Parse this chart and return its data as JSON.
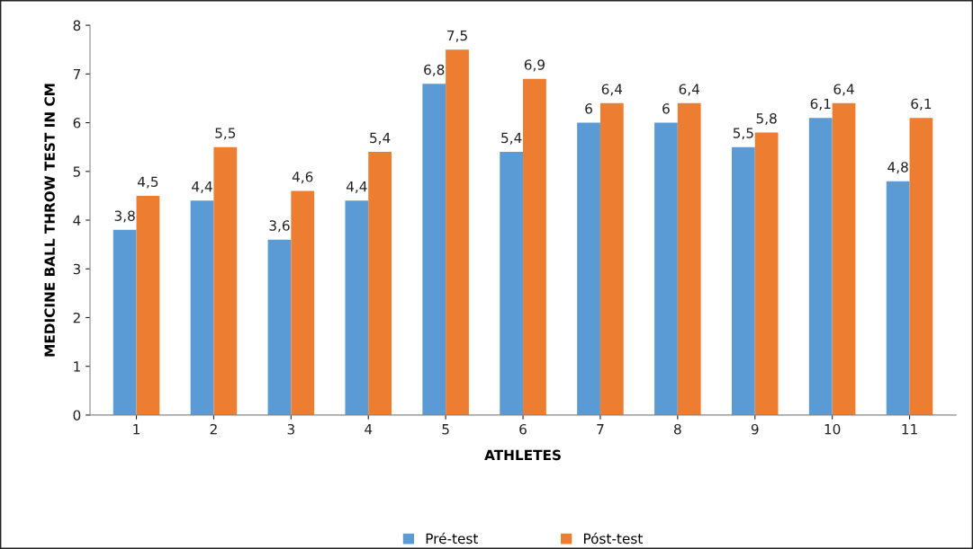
{
  "chart_data": {
    "type": "bar",
    "xlabel": "ATHLETES",
    "ylabel": "MEDICINE BALL THROW TEST IN CM",
    "categories": [
      "1",
      "2",
      "3",
      "4",
      "5",
      "6",
      "7",
      "8",
      "9",
      "10",
      "11"
    ],
    "series": [
      {
        "name": "Pré-test",
        "color": "#5b9bd5",
        "values": [
          3.8,
          4.4,
          3.6,
          4.4,
          6.8,
          5.4,
          6,
          6,
          5.5,
          6.1,
          4.8
        ],
        "value_labels": [
          "3,8",
          "4,4",
          "3,6",
          "4,4",
          "6,8",
          "5,4",
          "6",
          "6",
          "5,5",
          "6,1",
          "4,8"
        ]
      },
      {
        "name": "Póst-test",
        "color": "#ed7d31",
        "values": [
          4.5,
          5.5,
          4.6,
          5.4,
          7.5,
          6.9,
          6.4,
          6.4,
          5.8,
          6.4,
          6.1
        ],
        "value_labels": [
          "4,5",
          "5,5",
          "4,6",
          "5,4",
          "7,5",
          "6,9",
          "6,4",
          "6,4",
          "5,8",
          "6,4",
          "6,1"
        ]
      }
    ],
    "ylim": [
      0,
      8
    ],
    "yticks": [
      0,
      1,
      2,
      3,
      4,
      5,
      6,
      7,
      8
    ],
    "grid": false,
    "legend": "bottom"
  }
}
